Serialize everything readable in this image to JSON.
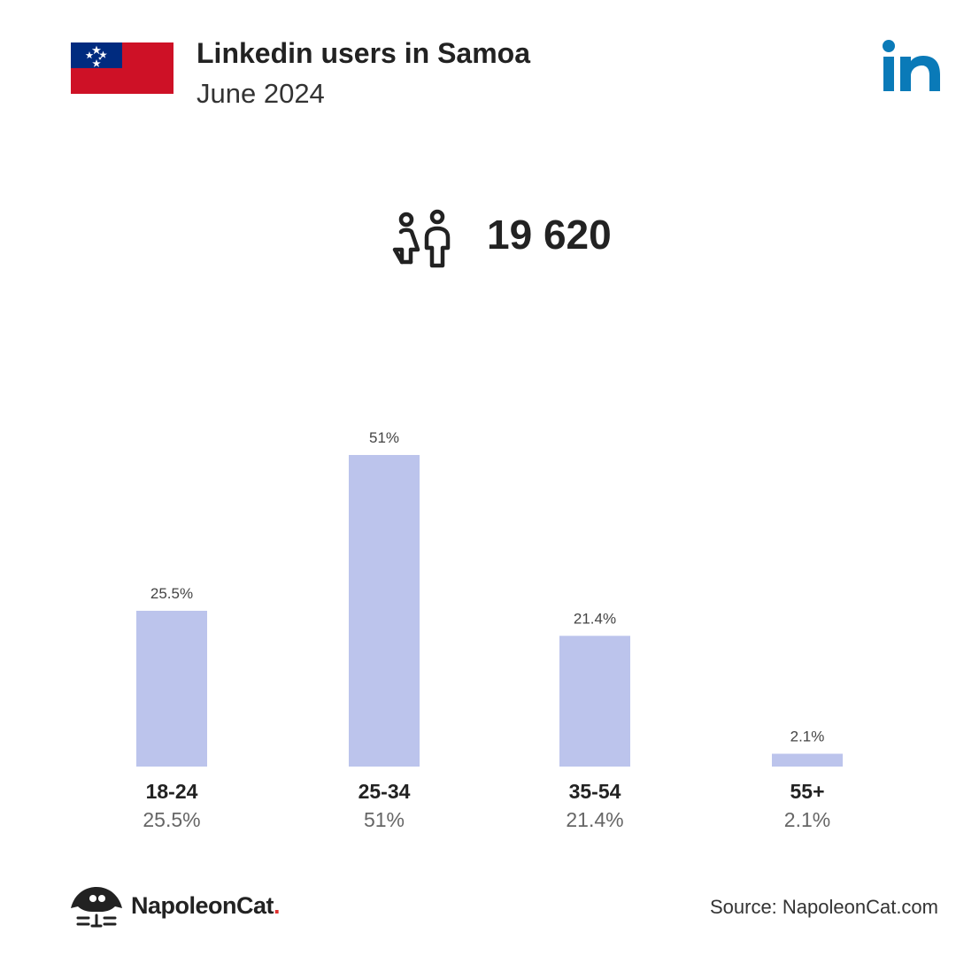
{
  "header": {
    "title": "Linkedin users in Samoa",
    "subtitle": "June 2024"
  },
  "flag": {
    "name": "Samoa",
    "colors": {
      "red": "#ce1126",
      "blue": "#002b7f",
      "star": "#ffffff"
    }
  },
  "brand_logo": {
    "icon": "linkedin-logo",
    "color": "#0a7ab8"
  },
  "summary": {
    "total_users": "19 620",
    "icon": "users-icon"
  },
  "chart_data": {
    "type": "bar",
    "categories": [
      "18-24",
      "25-34",
      "35-54",
      "55+"
    ],
    "values": [
      25.5,
      51,
      21.4,
      2.1
    ],
    "value_labels": [
      "25.5%",
      "51%",
      "21.4%",
      "2.1%"
    ],
    "category_value_labels": [
      "25.5%",
      "51%",
      "21.4%",
      "2.1%"
    ],
    "ylim": [
      0,
      51
    ],
    "unit": "%",
    "bar_color": "#bcc4ec",
    "grid": false,
    "legend": "none"
  },
  "footer": {
    "brand": "NapoleonCat",
    "brand_dot": ".",
    "source": "Source: NapoleonCat.com"
  }
}
